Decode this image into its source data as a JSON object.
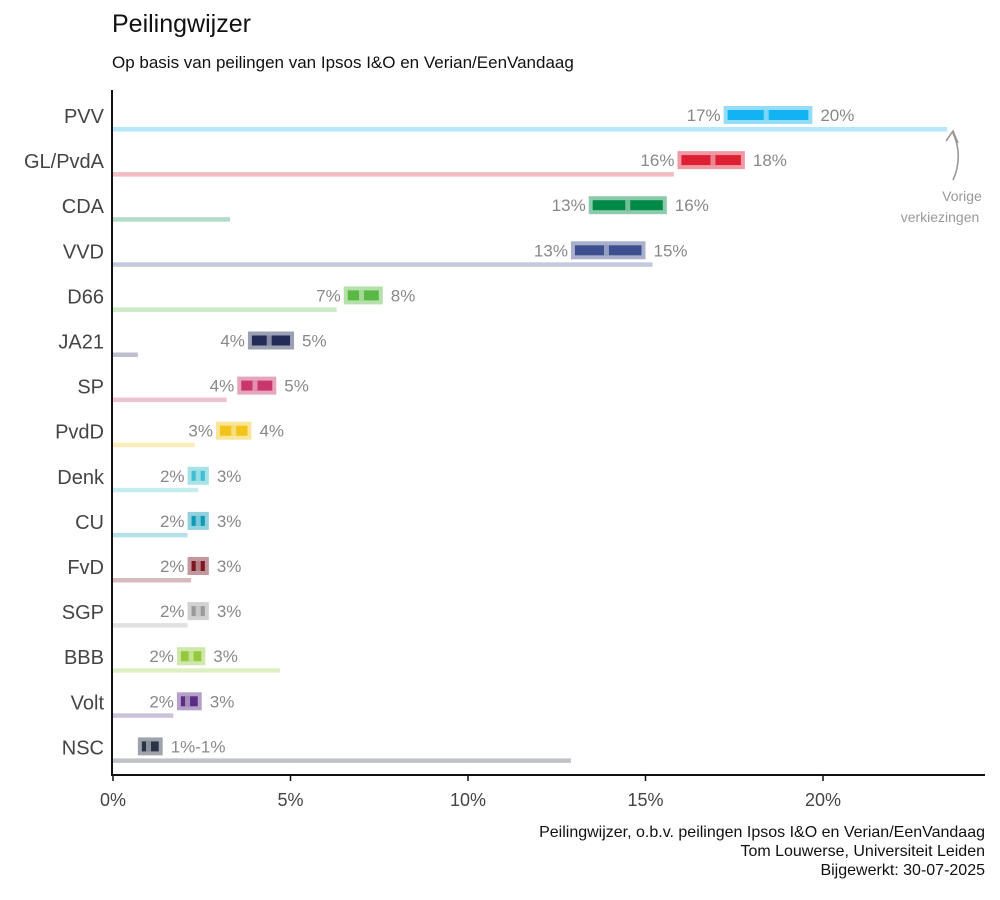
{
  "title": "Peilingwijzer",
  "subtitle": "Op basis van peilingen van Ipsos I&O en Verian/EenVandaag",
  "caption": [
    "Peilingwijzer, o.b.v. peilingen Ipsos I&O en Verian/EenVandaag",
    "Tom Louwerse, Universiteit Leiden",
    "Bijgewerkt: 30-07-2025"
  ],
  "chart_data": {
    "type": "bar",
    "title": "Peilingwijzer",
    "subtitle": "Op basis van peilingen van Ipsos I&O en Verian/EenVandaag",
    "xlim": [
      0,
      24.5
    ],
    "x_ticks": [
      0,
      5,
      10,
      15,
      20
    ],
    "x_tick_labels": [
      "0%",
      "5%",
      "10%",
      "15%",
      "20%"
    ],
    "grid": false,
    "annotation": {
      "lines": [
        "Vorige",
        "verkiezingen"
      ],
      "series": "previous_election"
    },
    "series": [
      {
        "kind": "range",
        "values_low": [
          17.2,
          15.9,
          13.4,
          12.9,
          6.5,
          3.8,
          3.5,
          2.9,
          2.1,
          2.1,
          2.1,
          2.1,
          1.8,
          1.8,
          0.7
        ],
        "values_mid": [
          18.4,
          16.9,
          14.5,
          13.9,
          7.0,
          4.4,
          4.0,
          3.4,
          2.4,
          2.4,
          2.4,
          2.4,
          2.2,
          2.1,
          1.0
        ],
        "values_high": [
          19.7,
          17.8,
          15.6,
          15.0,
          7.6,
          5.1,
          4.6,
          3.9,
          2.7,
          2.7,
          2.7,
          2.7,
          2.6,
          2.5,
          1.4
        ],
        "label_low": [
          "17%",
          "16%",
          "13%",
          "13%",
          "7%",
          "4%",
          "4%",
          "3%",
          "2%",
          "2%",
          "2%",
          "2%",
          "2%",
          "2%",
          ""
        ],
        "label_high": [
          "20%",
          "18%",
          "16%",
          "15%",
          "8%",
          "5%",
          "5%",
          "4%",
          "3%",
          "3%",
          "3%",
          "3%",
          "3%",
          "3%",
          "1%-1%"
        ]
      },
      {
        "kind": "previous_election",
        "values": [
          23.5,
          15.8,
          3.3,
          15.2,
          6.3,
          0.7,
          3.2,
          2.3,
          2.4,
          2.1,
          2.2,
          2.1,
          4.7,
          1.7,
          12.9
        ]
      }
    ],
    "categories": [
      "PVV",
      "GL/PvdA",
      "CDA",
      "VVD",
      "D66",
      "JA21",
      "SP",
      "PvdD",
      "Denk",
      "CU",
      "FvD",
      "SGP",
      "BBB",
      "Volt",
      "NSC"
    ],
    "colors": [
      "#11b4f0",
      "#dc1f33",
      "#008a48",
      "#3d4f8e",
      "#5ab845",
      "#232c56",
      "#c8366c",
      "#f2c318",
      "#3fbfcf",
      "#0d9bb6",
      "#7a1a23",
      "#9a9a9a",
      "#95c93d",
      "#5b2d82",
      "#2a3447"
    ]
  }
}
